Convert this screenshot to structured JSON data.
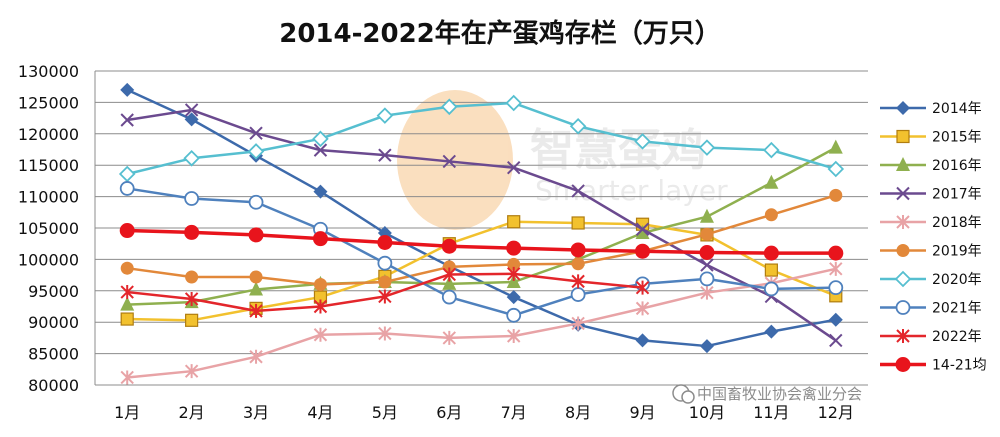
{
  "chart_data": {
    "type": "line",
    "title": "2014-2022年在产蛋鸡存栏（万只）",
    "categories": [
      "1月",
      "2月",
      "3月",
      "4月",
      "5月",
      "6月",
      "7月",
      "8月",
      "9月",
      "10月",
      "11月",
      "12月"
    ],
    "ylim": [
      80000,
      130000
    ],
    "yticks": [
      "80000",
      "85000",
      "90000",
      "95000",
      "100000",
      "105000",
      "110000",
      "115000",
      "120000",
      "125000",
      "130000"
    ],
    "grid": true,
    "legend_position": "right",
    "series": [
      {
        "name": "2014年",
        "color": "#3d6aab",
        "marker": "diamond",
        "values": [
          127000,
          122300,
          116500,
          110800,
          104200,
          98900,
          94000,
          89600,
          87100,
          86200,
          88500,
          90400
        ]
      },
      {
        "name": "2015年",
        "color": "#f2c12e",
        "marker": "square",
        "values": [
          90500,
          90300,
          92200,
          94000,
          97300,
          102500,
          106000,
          105800,
          105600,
          103900,
          98300,
          94200
        ]
      },
      {
        "name": "2016年",
        "color": "#8fb04f",
        "marker": "triangle",
        "values": [
          92800,
          93200,
          95200,
          96100,
          96400,
          96100,
          96400,
          100000,
          104200,
          106800,
          112200,
          117800
        ]
      },
      {
        "name": "2017年",
        "color": "#6b4a8f",
        "marker": "x",
        "values": [
          122200,
          123800,
          120100,
          117400,
          116600,
          115600,
          114600,
          110900,
          104800,
          99100,
          94100,
          87100
        ]
      },
      {
        "name": "2018年",
        "color": "#e8a3a6",
        "marker": "asterisk",
        "values": [
          81200,
          82200,
          84500,
          88000,
          88200,
          87500,
          87800,
          89800,
          92200,
          94700,
          96200,
          98500
        ]
      },
      {
        "name": "2019年",
        "color": "#e2883a",
        "marker": "circle",
        "values": [
          98600,
          97200,
          97200,
          96000,
          96400,
          98800,
          99200,
          99300,
          101300,
          104000,
          107100,
          110200
        ]
      },
      {
        "name": "2020年",
        "color": "#56bfd0",
        "marker": "diamond-open",
        "values": [
          113600,
          116100,
          117200,
          119200,
          122900,
          124300,
          124900,
          121200,
          118800,
          117800,
          117400,
          114400
        ]
      },
      {
        "name": "2021年",
        "color": "#4f81bd",
        "marker": "circle-open",
        "values": [
          111300,
          109700,
          109100,
          104800,
          99400,
          94000,
          91100,
          94400,
          96100,
          96900,
          95300,
          95500
        ]
      },
      {
        "name": "2022年",
        "color": "#e3262b",
        "marker": "asterisk",
        "values": [
          94800,
          93700,
          91800,
          92500,
          94100,
          97600,
          97700,
          96500,
          95500,
          null,
          null,
          null
        ]
      },
      {
        "name": "14-21均",
        "color": "#e8141c",
        "marker": "circle-big",
        "values": [
          104600,
          104300,
          103900,
          103300,
          102700,
          102100,
          101800,
          101500,
          101300,
          101100,
          101000,
          101000
        ]
      }
    ]
  },
  "watermark": {
    "cn": "智慧蛋鸡",
    "en": "Smarter layer"
  },
  "source_label": "中国畜牧业协会禽业分会"
}
